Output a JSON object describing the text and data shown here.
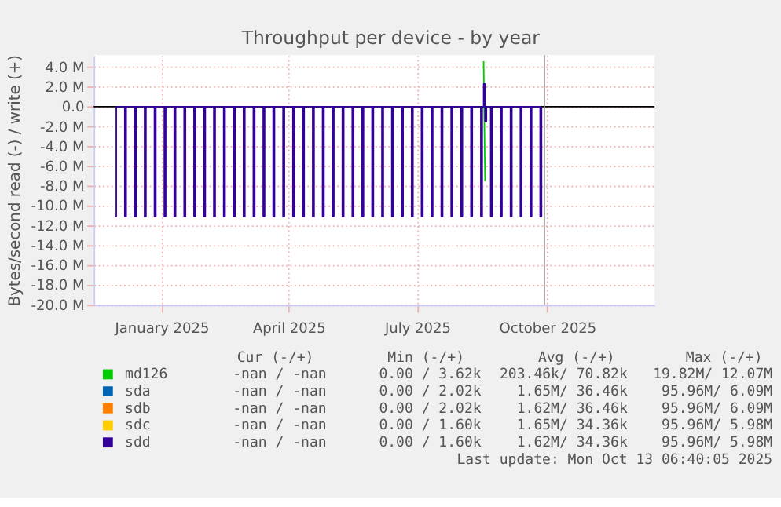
{
  "chart_data": {
    "type": "step",
    "title": "Throughput per device - by year",
    "ylabel": "Bytes/second read (-) / write (+)",
    "x": [
      "2024-12-13",
      "2024-12-14",
      "2024-12-20",
      "2024-12-21",
      "2024-12-27",
      "2024-12-28",
      "2025-01-03",
      "2025-01-04",
      "2025-01-10",
      "2025-01-11",
      "2025-01-17",
      "2025-01-18",
      "2025-01-24",
      "2025-01-25",
      "2025-01-31",
      "2025-02-01",
      "2025-02-07",
      "2025-02-08",
      "2025-02-14",
      "2025-02-15",
      "2025-02-21",
      "2025-02-22",
      "2025-02-28",
      "2025-03-01",
      "2025-03-07",
      "2025-03-08",
      "2025-03-14",
      "2025-03-15",
      "2025-03-21",
      "2025-03-22",
      "2025-03-28",
      "2025-03-29",
      "2025-04-04",
      "2025-04-05",
      "2025-04-11",
      "2025-04-12",
      "2025-04-18",
      "2025-04-19",
      "2025-04-25",
      "2025-04-26",
      "2025-05-02",
      "2025-05-03",
      "2025-05-09",
      "2025-05-10",
      "2025-05-16",
      "2025-05-17",
      "2025-05-23",
      "2025-05-24",
      "2025-05-30",
      "2025-05-31",
      "2025-06-06",
      "2025-06-07",
      "2025-06-13",
      "2025-06-14",
      "2025-06-20",
      "2025-06-21",
      "2025-06-27",
      "2025-06-28",
      "2025-07-04",
      "2025-07-05",
      "2025-07-11",
      "2025-07-12",
      "2025-07-18",
      "2025-07-19",
      "2025-07-25",
      "2025-07-26",
      "2025-08-01",
      "2025-08-02",
      "2025-08-08",
      "2025-08-09",
      "2025-08-15",
      "2025-08-16",
      "2025-08-22",
      "2025-08-23",
      "2025-08-29",
      "2025-08-30",
      "2025-08-31",
      "2025-09-01",
      "2025-09-02",
      "2025-09-05",
      "2025-09-06",
      "2025-09-12",
      "2025-09-13",
      "2025-09-19",
      "2025-09-20",
      "2025-09-26",
      "2025-09-27",
      "2025-10-03",
      "2025-10-04",
      "2025-10-10",
      "2025-10-11"
    ],
    "series": [
      {
        "name": "md126",
        "color": "#00cc00",
        "type": "line",
        "values": [
          null,
          null,
          null,
          null,
          null,
          null,
          null,
          null,
          null,
          null,
          null,
          null,
          null,
          null,
          null,
          null,
          null,
          null,
          null,
          null,
          null,
          null,
          null,
          null,
          null,
          null,
          null,
          null,
          null,
          null,
          null,
          null,
          null,
          null,
          null,
          null,
          null,
          null,
          null,
          null,
          null,
          null,
          null,
          null,
          null,
          null,
          null,
          null,
          null,
          null,
          null,
          null,
          null,
          null,
          null,
          null,
          null,
          null,
          null,
          null,
          null,
          null,
          null,
          null,
          null,
          null,
          null,
          null,
          null,
          null,
          null,
          null,
          null,
          null,
          null,
          null,
          4.6,
          -7.5,
          null,
          null,
          null,
          null,
          null,
          null,
          null,
          null,
          null,
          null,
          null,
          null,
          null
        ]
      },
      {
        "name": "sda",
        "color": "#0066b3",
        "values": [
          null,
          null,
          null,
          null,
          null,
          null,
          null,
          null,
          null,
          null,
          null,
          null,
          null,
          null,
          null,
          null,
          null,
          null,
          null,
          null,
          null,
          null,
          null,
          null,
          null,
          null,
          null,
          null,
          null,
          null,
          null,
          null,
          null,
          null,
          null,
          null,
          null,
          null,
          null,
          null,
          null,
          null,
          null,
          null,
          null,
          null,
          null,
          null,
          null,
          null,
          null,
          null,
          null,
          null,
          null,
          null,
          null,
          null,
          null,
          null,
          null,
          null,
          null,
          null,
          null,
          null,
          null,
          null,
          null,
          null,
          null,
          null,
          null,
          null,
          null,
          null,
          null,
          null,
          null,
          null,
          null,
          null,
          null,
          null,
          null,
          null,
          null,
          null,
          null,
          null,
          null
        ]
      },
      {
        "name": "sdb",
        "color": "#ff8000",
        "values": [
          null,
          null,
          null,
          null,
          null,
          null,
          null,
          null,
          null,
          null,
          null,
          null,
          null,
          null,
          null,
          null,
          null,
          null,
          null,
          null,
          null,
          null,
          null,
          null,
          null,
          null,
          null,
          null,
          null,
          null,
          null,
          null,
          null,
          null,
          null,
          null,
          null,
          null,
          null,
          null,
          null,
          null,
          null,
          null,
          null,
          null,
          null,
          null,
          null,
          null,
          null,
          null,
          null,
          null,
          null,
          null,
          null,
          null,
          null,
          null,
          null,
          null,
          null,
          null,
          null,
          null,
          null,
          null,
          null,
          null,
          null,
          null,
          null,
          null,
          null,
          null,
          null,
          null,
          null,
          null,
          null,
          null,
          null,
          null,
          null,
          null,
          null,
          null,
          null,
          null,
          null
        ]
      },
      {
        "name": "sdc",
        "color": "#ffcc00",
        "values": [
          null,
          null,
          null,
          null,
          null,
          null,
          null,
          null,
          null,
          null,
          null,
          null,
          null,
          null,
          null,
          null,
          null,
          null,
          null,
          null,
          null,
          null,
          null,
          null,
          null,
          null,
          null,
          null,
          null,
          null,
          null,
          null,
          null,
          null,
          null,
          null,
          null,
          null,
          null,
          null,
          null,
          null,
          null,
          null,
          null,
          null,
          null,
          null,
          null,
          null,
          null,
          null,
          null,
          null,
          null,
          null,
          null,
          null,
          null,
          null,
          null,
          null,
          null,
          null,
          null,
          null,
          null,
          null,
          null,
          null,
          null,
          null,
          null,
          null,
          null,
          null,
          null,
          null,
          null,
          null,
          null,
          null,
          null,
          null,
          null,
          null,
          null,
          null,
          null,
          null,
          null
        ]
      },
      {
        "name": "sdd",
        "color": "#330099",
        "values": [
          -11.1,
          0,
          -11.1,
          0,
          -11.1,
          0,
          -11.1,
          0,
          -11.1,
          0,
          -11.1,
          0,
          -11.1,
          0,
          -11.1,
          0,
          -11.1,
          0,
          -11.1,
          0,
          -11.1,
          0,
          -11.1,
          0,
          -11.1,
          0,
          -11.1,
          0,
          -11.1,
          0,
          -11.1,
          0,
          -11.1,
          0,
          -11.1,
          0,
          -11.1,
          0,
          -11.1,
          0,
          -11.1,
          0,
          -11.1,
          0,
          -11.1,
          0,
          -11.1,
          0,
          -11.1,
          0,
          -11.1,
          0,
          -11.1,
          0,
          -11.1,
          0,
          -11.1,
          0,
          -11.1,
          0,
          -11.1,
          0,
          -11.1,
          0,
          -11.1,
          0,
          -11.1,
          0,
          -11.1,
          0,
          -11.1,
          0,
          -11.1,
          0,
          -11.1,
          0,
          2.3,
          -1.5,
          0,
          -11.1,
          0,
          -11.1,
          0,
          -11.1,
          0,
          -11.1,
          0,
          -11.1,
          0,
          -11.1,
          0
        ]
      }
    ],
    "xlim": [
      "2024-11-28",
      "2025-12-30"
    ],
    "xticks": [
      {
        "value": "2025-01-15",
        "label": "January 2025"
      },
      {
        "value": "2025-04-15",
        "label": "April 2025"
      },
      {
        "value": "2025-07-15",
        "label": "July 2025"
      },
      {
        "value": "2025-10-15",
        "label": "October 2025"
      }
    ],
    "ylim": [
      -20,
      5.2
    ],
    "yticks": [
      {
        "value": 4,
        "label": "4.0 M"
      },
      {
        "value": 2,
        "label": "2.0 M"
      },
      {
        "value": 0,
        "label": "0.0"
      },
      {
        "value": -2,
        "label": "-2.0 M"
      },
      {
        "value": -4,
        "label": "-4.0 M"
      },
      {
        "value": -6,
        "label": "-6.0 M"
      },
      {
        "value": -8,
        "label": "-8.0 M"
      },
      {
        "value": -10,
        "label": "-10.0 M"
      },
      {
        "value": -12,
        "label": "-12.0 M"
      },
      {
        "value": -14,
        "label": "-14.0 M"
      },
      {
        "value": -16,
        "label": "-16.0 M"
      },
      {
        "value": -18,
        "label": "-18.0 M"
      },
      {
        "value": -20,
        "label": "-20.0 M"
      }
    ],
    "ref_lines": [
      {
        "axis": "y",
        "value": 0,
        "color": "#000000"
      },
      {
        "axis": "x",
        "value": "2025-10-13",
        "color": "#999999"
      }
    ],
    "grid": true,
    "legend": "bottom",
    "annotations": [
      "Cur (-/+)",
      "Min (-/+)",
      "Avg (-/+)",
      "Max (-/+)",
      "-nan / -nan",
      "0.00 / 3.62k",
      "203.46k/ 70.82k",
      "19.82M/ 12.07M",
      "-nan / -nan",
      "0.00 / 2.02k",
      "1.65M/ 36.46k",
      "95.96M/ 6.09M",
      "-nan / -nan",
      "0.00 / 2.02k",
      "1.62M/ 36.46k",
      "95.96M/ 6.09M",
      "-nan / -nan",
      "0.00 / 1.60k",
      "1.65M/ 34.36k",
      "95.96M/ 5.98M",
      "-nan / -nan",
      "0.00 / 1.60k",
      "1.62M/ 34.36k",
      "95.96M/ 5.98M",
      "Last update: Mon Oct 13 06:40:05 2025"
    ]
  }
}
